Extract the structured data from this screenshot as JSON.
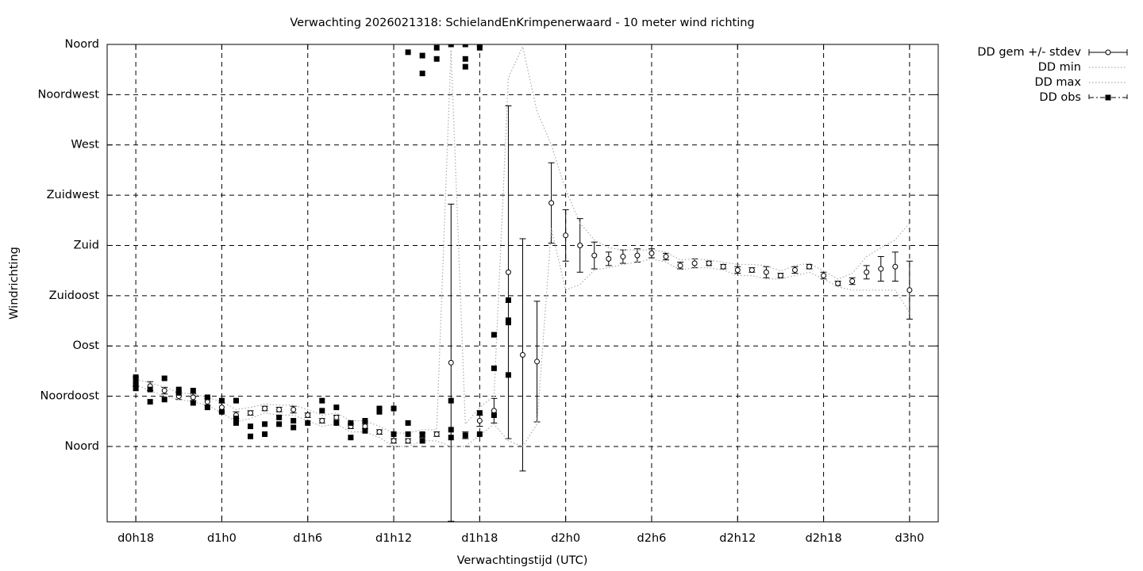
{
  "chart_data": {
    "type": "line",
    "title": "Verwachting 2026021318: SchielandEnKrimpenerwaard - 10 meter wind richting",
    "xlabel": "Verwachtingstijd (UTC)",
    "ylabel": "Windrichting",
    "xlim": [
      16,
      74
    ],
    "ylim": [
      -67.5,
      360
    ],
    "xticks": [
      {
        "value": 18,
        "label": "d0h18"
      },
      {
        "value": 24,
        "label": "d1h0"
      },
      {
        "value": 30,
        "label": "d1h6"
      },
      {
        "value": 36,
        "label": "d1h12"
      },
      {
        "value": 42,
        "label": "d1h18"
      },
      {
        "value": 48,
        "label": "d2h0"
      },
      {
        "value": 54,
        "label": "d2h6"
      },
      {
        "value": 60,
        "label": "d2h12"
      },
      {
        "value": 66,
        "label": "d2h18"
      },
      {
        "value": 72,
        "label": "d3h0"
      }
    ],
    "yticks": [
      {
        "value": 0,
        "label": "Noord"
      },
      {
        "value": 45,
        "label": "Noordoost"
      },
      {
        "value": 90,
        "label": "Oost"
      },
      {
        "value": 135,
        "label": "Zuidoost"
      },
      {
        "value": 180,
        "label": "Zuid"
      },
      {
        "value": 225,
        "label": "Zuidwest"
      },
      {
        "value": 270,
        "label": "West"
      },
      {
        "value": 315,
        "label": "Noordwest"
      },
      {
        "value": 360,
        "label": "Noord"
      }
    ],
    "grid": true,
    "legend": "outside-right",
    "x": [
      18,
      19,
      20,
      21,
      22,
      23,
      24,
      25,
      26,
      27,
      28,
      29,
      30,
      31,
      32,
      33,
      34,
      35,
      36,
      37,
      38,
      39,
      40,
      41,
      42,
      43,
      44,
      45,
      46,
      47,
      48,
      49,
      50,
      51,
      52,
      53,
      54,
      55,
      56,
      57,
      58,
      59,
      60,
      61,
      62,
      63,
      64,
      65,
      66,
      67,
      68,
      69,
      70,
      71,
      72
    ],
    "series": [
      {
        "name": "DD gem +/- stdev",
        "style": "errorbar",
        "color": "#000000",
        "values": [
          58,
          54,
          50,
          45,
          44,
          40,
          35,
          28,
          30,
          34,
          33,
          33,
          28,
          23,
          26,
          18,
          18,
          13,
          5,
          5,
          10,
          11,
          75,
          10,
          23,
          32,
          156,
          82,
          76,
          218,
          189,
          180,
          171,
          168,
          170,
          171,
          173,
          170,
          162,
          164,
          164,
          161,
          158,
          158,
          156,
          153,
          158,
          161,
          153,
          146,
          148,
          156,
          159,
          161,
          140
        ],
        "errors": [
          4,
          4,
          3,
          3,
          3,
          3,
          4,
          3,
          2,
          2,
          2,
          3,
          2,
          2,
          2,
          2,
          2,
          2,
          2,
          2,
          2,
          2,
          142,
          3,
          5,
          11,
          149,
          104,
          54,
          36,
          23,
          24,
          12,
          6,
          6,
          6,
          4,
          3,
          3,
          4,
          2,
          2,
          3,
          2,
          5,
          2,
          3,
          2,
          3,
          2,
          3,
          6,
          11,
          13,
          26
        ]
      },
      {
        "name": "DD min",
        "style": "dotted",
        "color": "#aaaaaa",
        "values": [
          55,
          50,
          45,
          42,
          40,
          37,
          30,
          22,
          25,
          30,
          28,
          28,
          23,
          18,
          20,
          13,
          13,
          8,
          0,
          0,
          5,
          5,
          0,
          0,
          10,
          20,
          5,
          0,
          20,
          195,
          140,
          145,
          158,
          160,
          163,
          165,
          168,
          165,
          158,
          160,
          160,
          158,
          153,
          153,
          150,
          150,
          153,
          156,
          150,
          143,
          140,
          140,
          140,
          140,
          120
        ]
      },
      {
        "name": "DD max",
        "style": "dotted",
        "color": "#aaaaaa",
        "values": [
          60,
          57,
          53,
          48,
          47,
          44,
          40,
          33,
          35,
          38,
          37,
          37,
          33,
          28,
          30,
          23,
          23,
          18,
          12,
          12,
          15,
          15,
          355,
          20,
          35,
          45,
          330,
          358,
          300,
          270,
          230,
          200,
          185,
          178,
          176,
          176,
          176,
          174,
          167,
          168,
          167,
          165,
          163,
          163,
          162,
          157,
          162,
          164,
          157,
          150,
          155,
          170,
          178,
          185,
          200
        ]
      },
      {
        "name": "DD obs",
        "style": "points",
        "color": "#000000",
        "x": [
          18,
          18,
          18,
          18,
          19,
          19,
          20,
          20,
          21,
          21,
          22,
          22,
          23,
          23,
          24,
          24,
          25,
          25,
          25,
          26,
          26,
          27,
          27,
          28,
          28,
          29,
          29,
          30,
          31,
          31,
          32,
          32,
          33,
          33,
          34,
          34,
          35,
          35,
          36,
          36,
          37,
          37,
          37,
          38,
          38,
          38,
          38,
          39,
          39,
          40,
          40,
          40,
          40,
          41,
          41,
          41,
          41,
          42,
          42,
          42,
          42,
          43,
          43,
          43,
          44,
          44,
          44,
          44
        ],
        "values": [
          62,
          58,
          55,
          52,
          51,
          40,
          61,
          42,
          51,
          48,
          50,
          39,
          44,
          35,
          41,
          31,
          41,
          25,
          21,
          18,
          9,
          20,
          11,
          26,
          20,
          23,
          17,
          21,
          41,
          32,
          35,
          21,
          21,
          8,
          23,
          14,
          34,
          31,
          34,
          11,
          21,
          11,
          353,
          11,
          5,
          350,
          334,
          357,
          347,
          360,
          41,
          15,
          8,
          360,
          347,
          340,
          10,
          360,
          357,
          30,
          11,
          100,
          70,
          28,
          131,
          113,
          111,
          64
        ]
      }
    ]
  }
}
